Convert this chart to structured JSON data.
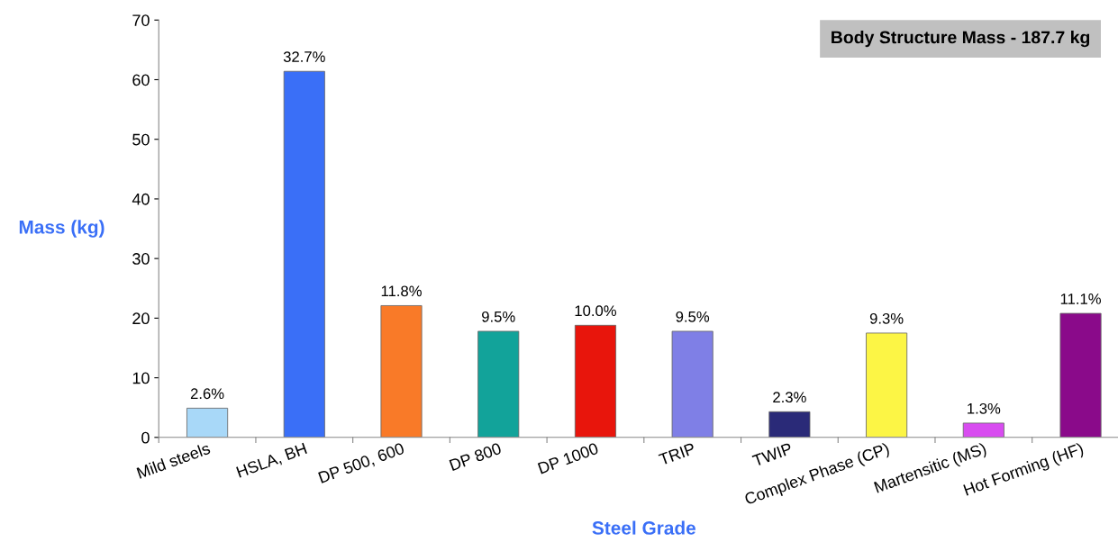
{
  "chart_data": {
    "type": "bar",
    "xlabel": "Steel Grade",
    "ylabel": "Mass (kg)",
    "annotations": [
      "Body Structure Mass - 187.7 kg",
      {
        "text": "2.6%",
        "x": "Mild steels",
        "y": 4.9
      },
      {
        "text": "32.7%",
        "x": "HSLA, BH",
        "y": 61.4
      },
      {
        "text": "11.8%",
        "x": "DP 500, 600",
        "y": 22.1
      },
      {
        "text": "9.5%",
        "x": "DP 800",
        "y": 17.8
      },
      {
        "text": "10.0%",
        "x": "DP 1000",
        "y": 18.8
      },
      {
        "text": "9.5%",
        "x": "TRIP",
        "y": 17.8
      },
      {
        "text": "2.3%",
        "x": "TWIP",
        "y": 4.3
      },
      {
        "text": "9.3%",
        "x": "Complex Phase (CP)",
        "y": 17.5
      },
      {
        "text": "1.3%",
        "x": "Martensitic (MS)",
        "y": 2.4
      },
      {
        "text": "11.1%",
        "x": "Hot Forming (HF)",
        "y": 20.8
      }
    ],
    "categories": [
      "Mild steels",
      "HSLA, BH",
      "DP 500, 600",
      "DP 800",
      "DP 1000",
      "TRIP",
      "TWIP",
      "Complex Phase (CP)",
      "Martensitic (MS)",
      "Hot Forming (HF)"
    ],
    "values": [
      4.9,
      61.4,
      22.1,
      17.8,
      18.8,
      17.8,
      4.3,
      17.5,
      2.4,
      20.8
    ],
    "colors": [
      "#a8d8f8",
      "#3a6ff7",
      "#f97a28",
      "#12a39a",
      "#e8150c",
      "#7f7fe6",
      "#2a2a78",
      "#fcf545",
      "#d84cf0",
      "#8a0a8a"
    ],
    "ylim": [
      0,
      70
    ],
    "yticks": [
      0,
      10,
      20,
      30,
      40,
      50,
      60,
      70
    ],
    "grid": false,
    "legend": false
  }
}
